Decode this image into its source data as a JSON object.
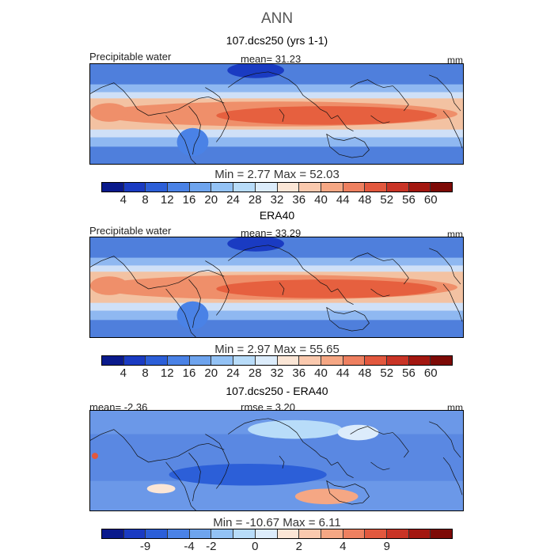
{
  "title": "ANN",
  "panels": [
    {
      "heading": "107.dcs250 (yrs 1-1)",
      "left_label": "Precipitable water",
      "mid_label": "mean=  31.23",
      "unit": "mm",
      "minmax": "Min =    2.77  Max =   52.03",
      "colorbar_ticks": [
        "4",
        "8",
        "12",
        "16",
        "20",
        "24",
        "28",
        "32",
        "36",
        "40",
        "44",
        "48",
        "52",
        "56",
        "60"
      ],
      "colorbar_colors": [
        "#0a1a8c",
        "#1a3bc2",
        "#2c5fd8",
        "#4a82e6",
        "#6ea4ee",
        "#93c2f5",
        "#b8dcf9",
        "#dcecfb",
        "#fbe6d6",
        "#fac9ae",
        "#f5a784",
        "#ee8060",
        "#e2583e",
        "#c93426",
        "#a31710",
        "#7d0a06"
      ],
      "field": "absolute"
    },
    {
      "heading": "ERA40",
      "left_label": "Precipitable water",
      "mid_label": "mean=  33.29",
      "unit": "mm",
      "minmax": "Min =    2.97  Max =   55.65",
      "colorbar_ticks": [
        "4",
        "8",
        "12",
        "16",
        "20",
        "24",
        "28",
        "32",
        "36",
        "40",
        "44",
        "48",
        "52",
        "56",
        "60"
      ],
      "colorbar_colors": [
        "#0a1a8c",
        "#1a3bc2",
        "#2c5fd8",
        "#4a82e6",
        "#6ea4ee",
        "#93c2f5",
        "#b8dcf9",
        "#dcecfb",
        "#fbe6d6",
        "#fac9ae",
        "#f5a784",
        "#ee8060",
        "#e2583e",
        "#c93426",
        "#a31710",
        "#7d0a06"
      ],
      "field": "absolute"
    },
    {
      "heading": "107.dcs250 - ERA40",
      "left_label": "mean=  -2.36",
      "mid_label": "rmse =   3.20",
      "unit": "mm",
      "minmax": "Min = -10.67  Max =    6.11",
      "colorbar_ticks": [
        "-9",
        "-4",
        "-2",
        "0",
        "2",
        "4",
        "9"
      ],
      "colorbar_colors": [
        "#0a1a8c",
        "#1a3bc2",
        "#2c5fd8",
        "#4a82e6",
        "#6ea4ee",
        "#93c2f5",
        "#b8dcf9",
        "#dcecfb",
        "#fbe6d6",
        "#fac9ae",
        "#f5a784",
        "#ee8060",
        "#e2583e",
        "#c93426",
        "#a31710",
        "#7d0a06"
      ],
      "field": "difference"
    }
  ]
}
